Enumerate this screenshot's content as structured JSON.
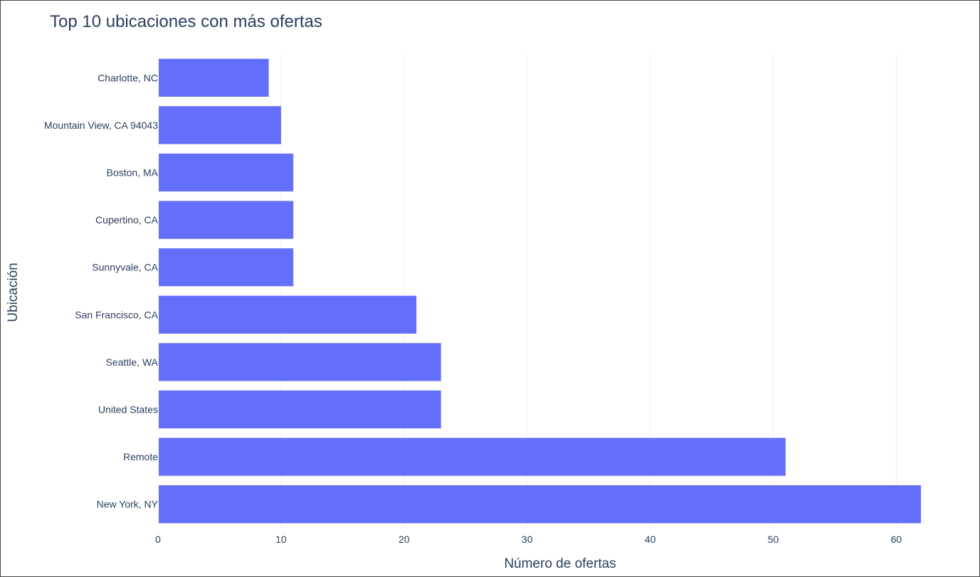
{
  "chart_data": {
    "type": "bar",
    "orientation": "horizontal",
    "title": "Top 10 ubicaciones con más ofertas",
    "xlabel": "Número de ofertas",
    "ylabel": "Ubicación",
    "categories": [
      "Charlotte, NC",
      "Mountain View, CA 94043",
      "Boston, MA",
      "Cupertino, CA",
      "Sunnyvale, CA",
      "San Francisco, CA",
      "Seattle, WA",
      "United States",
      "Remote",
      "New York, NY"
    ],
    "values": [
      9,
      10,
      11,
      11,
      11,
      21,
      23,
      23,
      51,
      62
    ],
    "xlim": [
      0,
      62
    ],
    "xticks": [
      0,
      10,
      20,
      30,
      40,
      50,
      60
    ],
    "grid": true,
    "bar_color": "#636efa",
    "text_color": "#2a3f5f",
    "grid_color": "#ebf0f8"
  }
}
